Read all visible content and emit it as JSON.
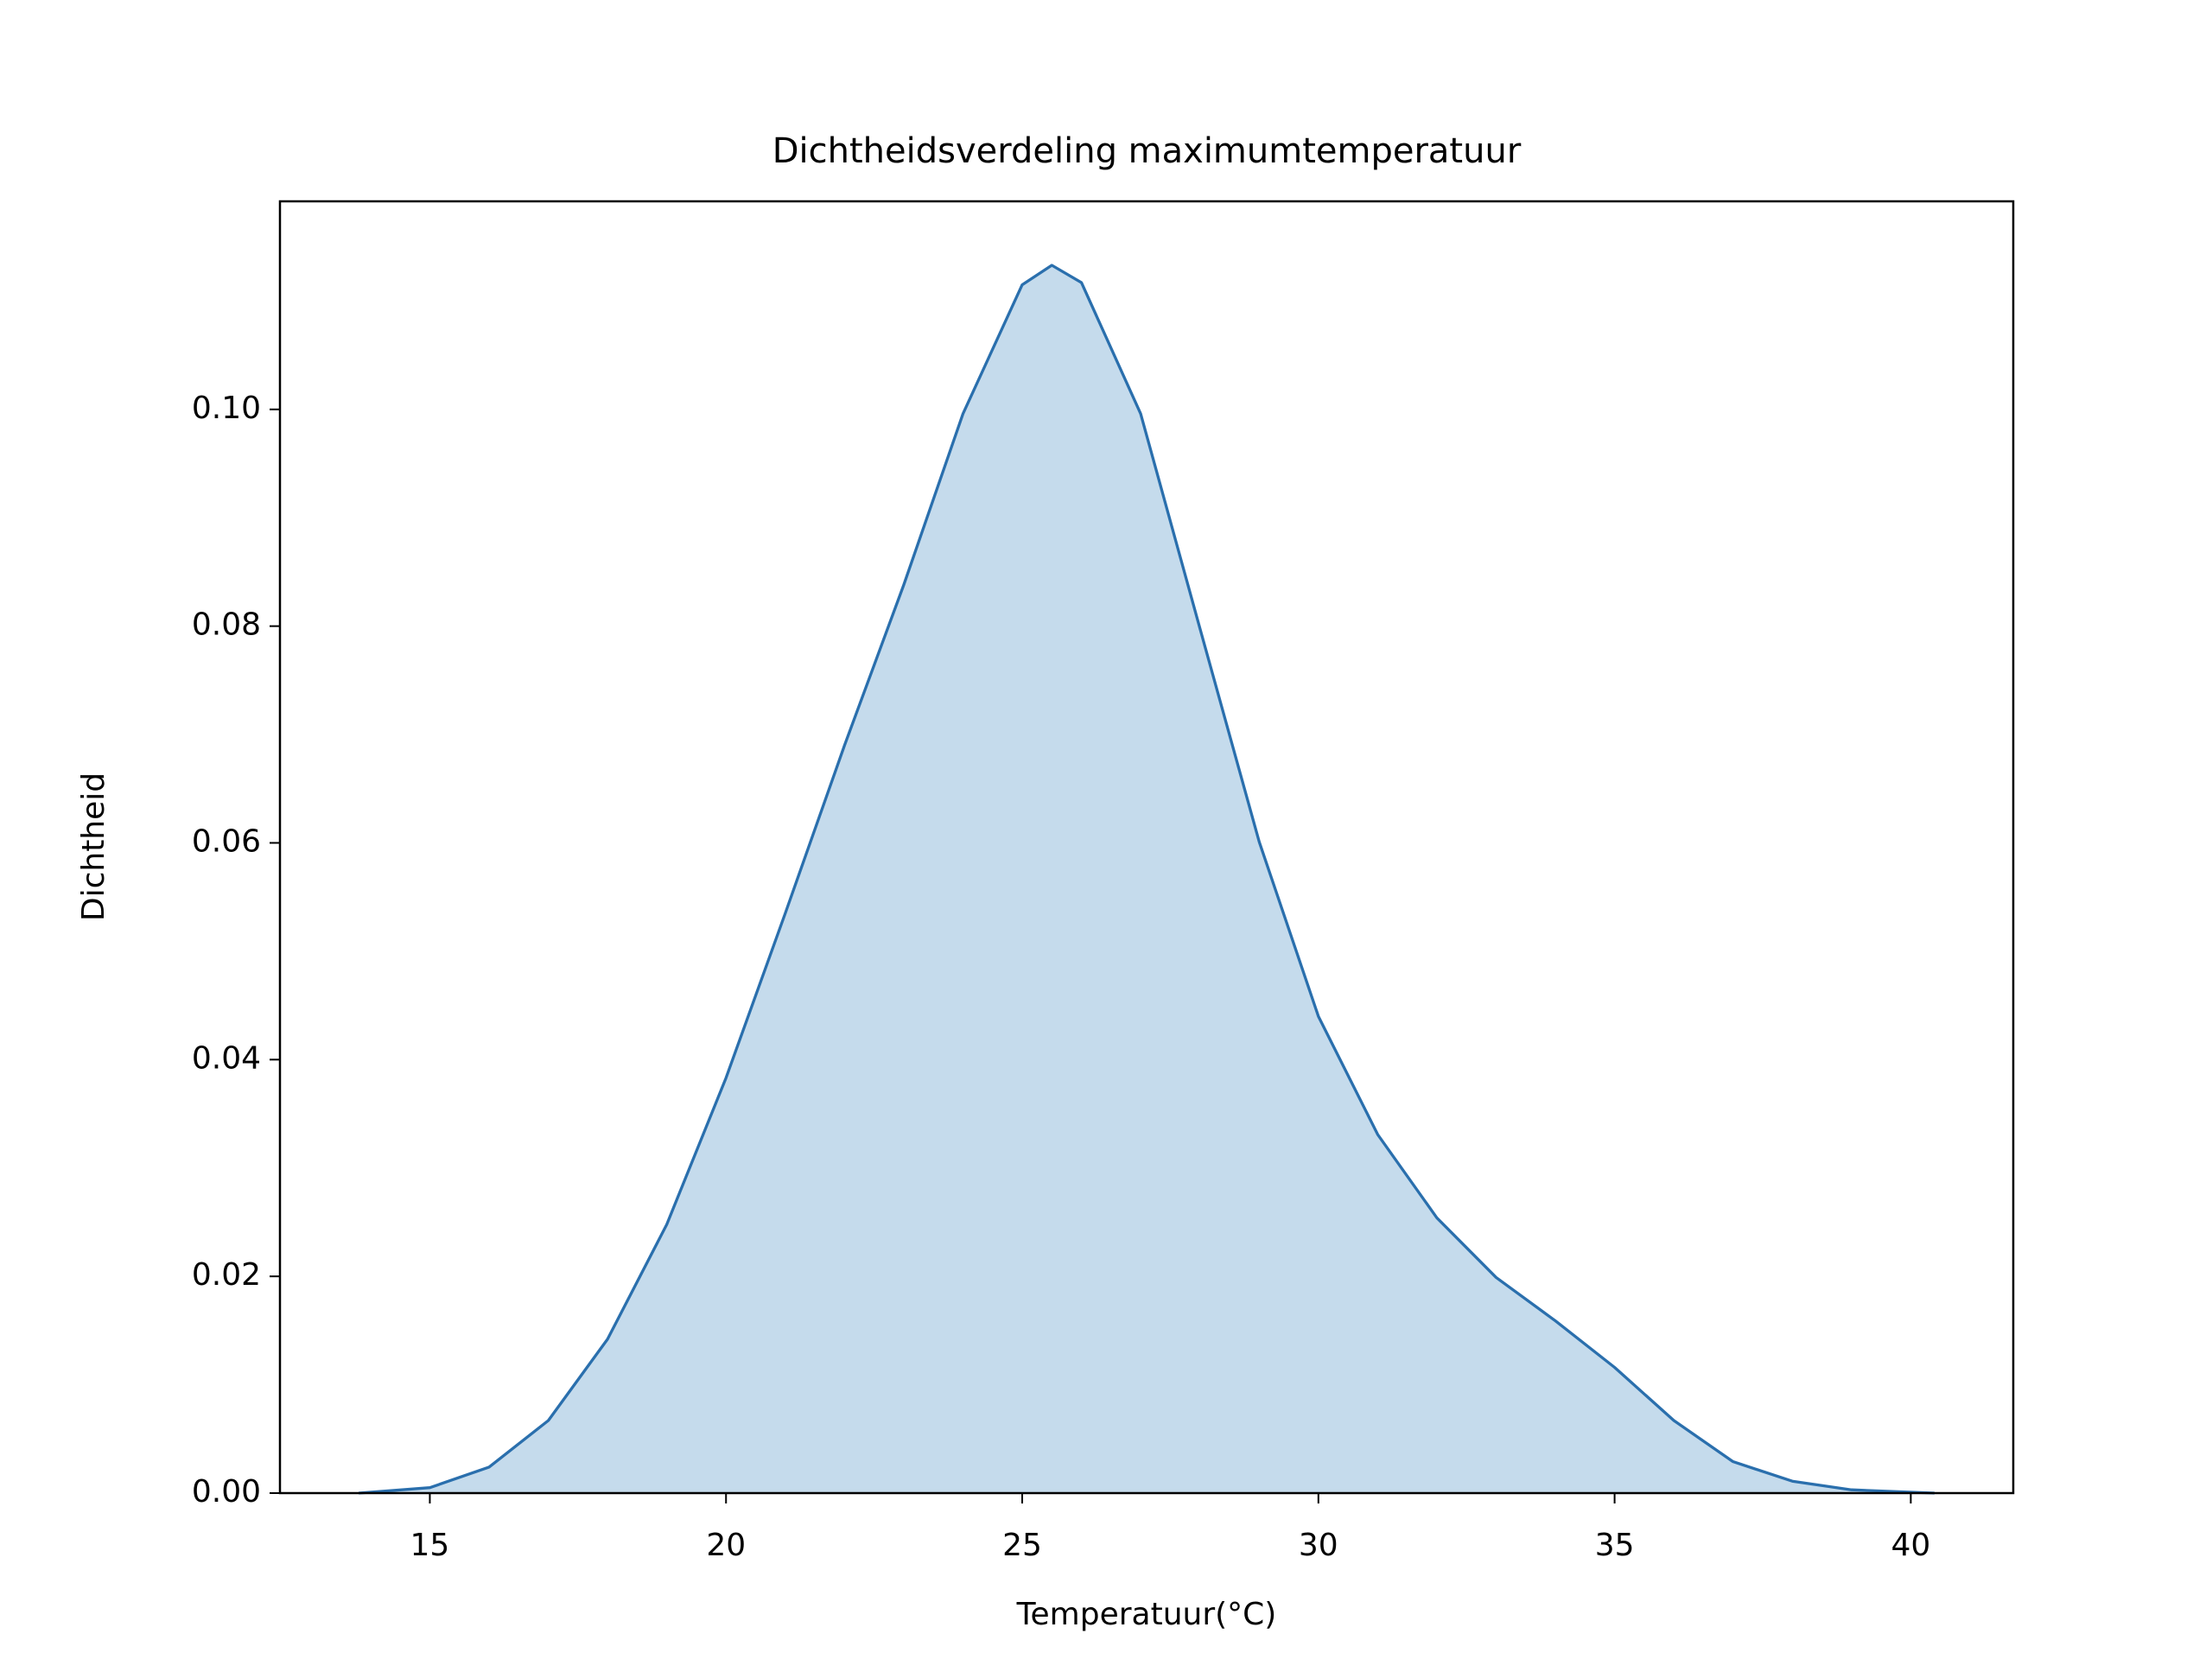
{
  "chart_data": {
    "type": "area",
    "title": "Dichtheidsverdeling maximumtemperatuur",
    "x_label": "Temperatuur(°C)",
    "y_label": "Dichtheid",
    "x": [
      13.8,
      15,
      16,
      17,
      18,
      19,
      20,
      21,
      22,
      23,
      24,
      25,
      25.5,
      26,
      27,
      28,
      29,
      30,
      31,
      32,
      33,
      34,
      35,
      36,
      37,
      38,
      39,
      40.4
    ],
    "series": [
      {
        "color": "#2a6fad",
        "values": [
          0,
          0.0005,
          0.0024,
          0.0067,
          0.0142,
          0.0248,
          0.0383,
          0.0535,
          0.069,
          0.0838,
          0.0996,
          0.1115,
          0.1133,
          0.1117,
          0.0996,
          0.0798,
          0.0601,
          0.044,
          0.0331,
          0.0254,
          0.0199,
          0.0159,
          0.0116,
          0.0067,
          0.0029,
          0.0011,
          0.0003,
          0
        ]
      }
    ],
    "fill_color": "#c5dbec",
    "xlim": [
      12.47,
      41.73
    ],
    "ylim": [
      0,
      0.1192
    ],
    "xticks": [
      15,
      20,
      25,
      30,
      35,
      40
    ],
    "yticks": [
      {
        "value": 0,
        "label": "0.00"
      },
      {
        "value": 0.02,
        "label": "0.02"
      },
      {
        "value": 0.04,
        "label": "0.04"
      },
      {
        "value": 0.06,
        "label": "0.06"
      },
      {
        "value": 0.08,
        "label": "0.08"
      },
      {
        "value": 0.1,
        "label": "0.10"
      }
    ],
    "grid": false
  }
}
